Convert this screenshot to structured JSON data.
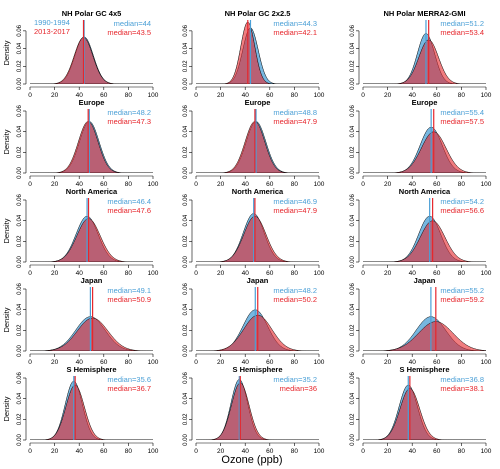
{
  "figure": {
    "xlabel": "Ozone (ppb)",
    "ylabel": "Density",
    "legend": [
      {
        "name": "1990-1994",
        "color": "#4a9fd6"
      },
      {
        "name": "2013-2017",
        "color": "#e6262c"
      }
    ],
    "overlap_color": "#8e2f56",
    "median_prefix": "median="
  },
  "chart_data": [
    {
      "type": "area",
      "title": "NH Polar GC 4x5",
      "row": 0,
      "col": 0,
      "median_a": "44",
      "median_b": "43.5",
      "ma": 44,
      "mb": 43.5,
      "sa": 7.5,
      "sb": 7.6,
      "xlim": [
        0,
        100
      ],
      "ylim": [
        0,
        0.07
      ],
      "yticks": [
        0,
        0.02,
        0.04,
        0.06
      ],
      "xticks": [
        0,
        20,
        40,
        60,
        80,
        100
      ]
    },
    {
      "type": "area",
      "title": "NH Polar GC 2x2.5",
      "row": 0,
      "col": 1,
      "median_a": "44.3",
      "median_b": "42.1",
      "ma": 44.3,
      "mb": 42.1,
      "sa": 6.3,
      "sb": 5.7,
      "xlim": [
        0,
        100
      ],
      "ylim": [
        0,
        0.07
      ],
      "yticks": [
        0,
        0.02,
        0.04,
        0.06
      ],
      "xticks": [
        0,
        20,
        40,
        60,
        80,
        100
      ]
    },
    {
      "type": "area",
      "title": "NH Polar MERRA2-GMI",
      "row": 0,
      "col": 2,
      "median_a": "51.2",
      "median_b": "53.4",
      "ma": 51.2,
      "mb": 53.4,
      "sa": 7.0,
      "sb": 8.0,
      "xlim": [
        0,
        100
      ],
      "ylim": [
        0,
        0.07
      ],
      "yticks": [
        0,
        0.02,
        0.04,
        0.06
      ],
      "xticks": [
        0,
        20,
        40,
        60,
        80,
        100
      ]
    },
    {
      "type": "area",
      "title": "Europe",
      "row": 1,
      "col": 0,
      "median_a": "48.2",
      "median_b": "47.3",
      "ma": 48.2,
      "mb": 47.3,
      "sa": 8.0,
      "sb": 8.0,
      "xlim": [
        0,
        100
      ],
      "ylim": [
        0,
        0.06
      ],
      "yticks": [
        0,
        0.02,
        0.04,
        0.06
      ],
      "xticks": [
        0,
        20,
        40,
        60,
        80,
        100
      ]
    },
    {
      "type": "area",
      "title": "Europe",
      "row": 1,
      "col": 1,
      "median_a": "48.8",
      "median_b": "47.9",
      "ma": 48.8,
      "mb": 47.9,
      "sa": 8.0,
      "sb": 8.0,
      "xlim": [
        0,
        100
      ],
      "ylim": [
        0,
        0.06
      ],
      "yticks": [
        0,
        0.02,
        0.04,
        0.06
      ],
      "xticks": [
        0,
        20,
        40,
        60,
        80,
        100
      ]
    },
    {
      "type": "area",
      "title": "Europe",
      "row": 1,
      "col": 2,
      "median_a": "55.4",
      "median_b": "57.5",
      "ma": 55.4,
      "mb": 57.5,
      "sa": 9.0,
      "sb": 10.0,
      "xlim": [
        0,
        100
      ],
      "ylim": [
        0,
        0.06
      ],
      "yticks": [
        0,
        0.02,
        0.04,
        0.06
      ],
      "xticks": [
        0,
        20,
        40,
        60,
        80,
        100
      ]
    },
    {
      "type": "area",
      "title": "North America",
      "row": 2,
      "col": 0,
      "median_a": "46.4",
      "median_b": "47.6",
      "ma": 46.4,
      "mb": 47.6,
      "sa": 9.0,
      "sb": 9.5,
      "xlim": [
        0,
        100
      ],
      "ylim": [
        0,
        0.06
      ],
      "yticks": [
        0,
        0.02,
        0.04,
        0.06
      ],
      "xticks": [
        0,
        20,
        40,
        60,
        80,
        100
      ]
    },
    {
      "type": "area",
      "title": "North America",
      "row": 2,
      "col": 1,
      "median_a": "46.9",
      "median_b": "47.9",
      "ma": 46.9,
      "mb": 47.9,
      "sa": 8.5,
      "sb": 9.0,
      "xlim": [
        0,
        100
      ],
      "ylim": [
        0,
        0.06
      ],
      "yticks": [
        0,
        0.02,
        0.04,
        0.06
      ],
      "xticks": [
        0,
        20,
        40,
        60,
        80,
        100
      ]
    },
    {
      "type": "area",
      "title": "North America",
      "row": 2,
      "col": 2,
      "median_a": "54.2",
      "median_b": "56.6",
      "ma": 54.2,
      "mb": 56.6,
      "sa": 9.0,
      "sb": 10.0,
      "xlim": [
        0,
        100
      ],
      "ylim": [
        0,
        0.06
      ],
      "yticks": [
        0,
        0.02,
        0.04,
        0.06
      ],
      "xticks": [
        0,
        20,
        40,
        60,
        80,
        100
      ]
    },
    {
      "type": "area",
      "title": "Japan",
      "row": 3,
      "col": 0,
      "median_a": "49.1",
      "median_b": "50.9",
      "ma": 49.1,
      "mb": 50.9,
      "sa": 12.0,
      "sb": 12.5,
      "xlim": [
        0,
        100
      ],
      "ylim": [
        0,
        0.06
      ],
      "yticks": [
        0,
        0.02,
        0.04,
        0.06
      ],
      "xticks": [
        0,
        20,
        40,
        60,
        80,
        100
      ]
    },
    {
      "type": "area",
      "title": "Japan",
      "row": 3,
      "col": 1,
      "median_a": "48.2",
      "median_b": "50.2",
      "ma": 48.2,
      "mb": 50.2,
      "sa": 10.0,
      "sb": 11.5,
      "xlim": [
        0,
        100
      ],
      "ylim": [
        0,
        0.06
      ],
      "yticks": [
        0,
        0.02,
        0.04,
        0.06
      ],
      "xticks": [
        0,
        20,
        40,
        60,
        80,
        100
      ]
    },
    {
      "type": "area",
      "title": "Japan",
      "row": 3,
      "col": 2,
      "median_a": "55.2",
      "median_b": "59.2",
      "ma": 55.2,
      "mb": 59.2,
      "sa": 12.0,
      "sb": 14.0,
      "xlim": [
        0,
        100
      ],
      "ylim": [
        0,
        0.06
      ],
      "yticks": [
        0,
        0.02,
        0.04,
        0.06
      ],
      "xticks": [
        0,
        20,
        40,
        60,
        80,
        100
      ]
    },
    {
      "type": "area",
      "title": "S Hemisphere",
      "row": 4,
      "col": 0,
      "median_a": "35.6",
      "median_b": "36.7",
      "ma": 35.6,
      "mb": 36.7,
      "sa": 7.0,
      "sb": 7.5,
      "xlim": [
        0,
        100
      ],
      "ylim": [
        0,
        0.06
      ],
      "yticks": [
        0,
        0.02,
        0.04,
        0.06
      ],
      "xticks": [
        0,
        20,
        40,
        60,
        80,
        100
      ]
    },
    {
      "type": "area",
      "title": "S Hemisphere",
      "row": 4,
      "col": 1,
      "median_a": "35.2",
      "median_b": "36",
      "ma": 35.2,
      "mb": 36,
      "sa": 6.8,
      "sb": 7.2,
      "xlim": [
        0,
        100
      ],
      "ylim": [
        0,
        0.06
      ],
      "yticks": [
        0,
        0.02,
        0.04,
        0.06
      ],
      "xticks": [
        0,
        20,
        40,
        60,
        80,
        100
      ]
    },
    {
      "type": "area",
      "title": "S Hemisphere",
      "row": 4,
      "col": 2,
      "median_a": "36.8",
      "median_b": "38.1",
      "ma": 36.8,
      "mb": 38.1,
      "sa": 7.5,
      "sb": 8.0,
      "xlim": [
        0,
        100
      ],
      "ylim": [
        0,
        0.06
      ],
      "yticks": [
        0,
        0.02,
        0.04,
        0.06
      ],
      "xticks": [
        0,
        20,
        40,
        60,
        80,
        100
      ]
    }
  ]
}
